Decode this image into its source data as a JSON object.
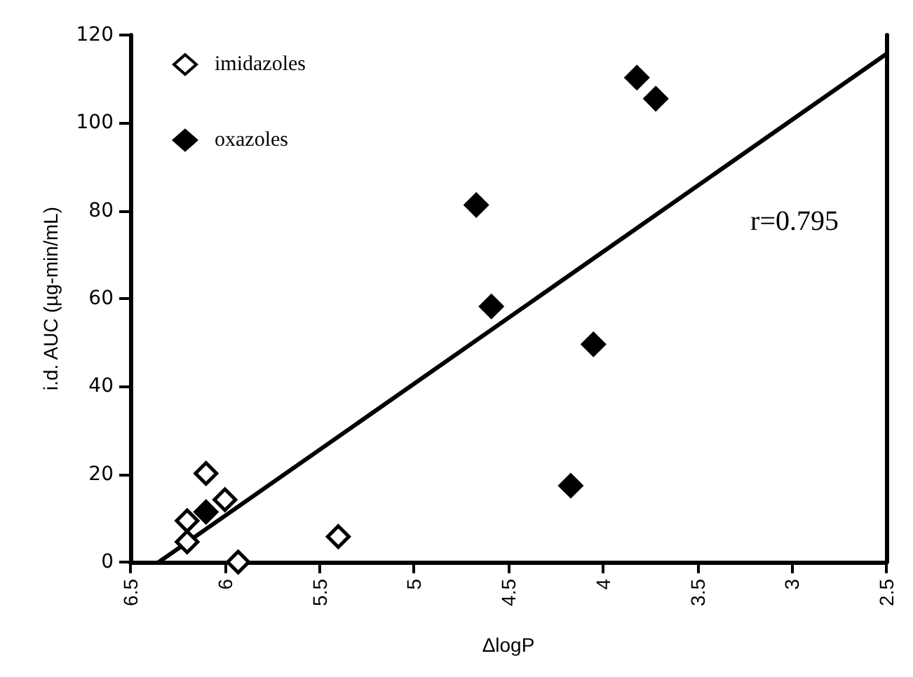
{
  "chart_data": {
    "type": "scatter",
    "xlabel": "ΔlogP",
    "ylabel": "i.d. AUC (µg-min/mL)",
    "xlim": [
      6.5,
      2.5
    ],
    "xticks": [
      6.5,
      6,
      5.5,
      5,
      4.5,
      4,
      3.5,
      3,
      2.5
    ],
    "ylim": [
      0,
      120
    ],
    "yticks": [
      0,
      20,
      40,
      60,
      80,
      100,
      120
    ],
    "grid": false,
    "legend": "top left",
    "marker": "diamond",
    "annotations": [
      "r=0.795"
    ],
    "series": [
      {
        "name": "imidazoles",
        "color": "#ffffff",
        "x": [
          6.1,
          6.0,
          6.2,
          6.2,
          5.93,
          5.4
        ],
        "values": [
          20.2,
          14.2,
          9.4,
          4.6,
          0,
          5.8
        ]
      },
      {
        "name": "oxazoles",
        "color": "#000000",
        "x": [
          6.1,
          3.82,
          3.72,
          4.67,
          4.59,
          4.05,
          4.17
        ],
        "values": [
          11.4,
          110.3,
          105.5,
          81.3,
          58.2,
          49.6,
          17.4
        ]
      },
      {
        "type": "line",
        "color": "#000000",
        "x": [
          6.35,
          2.5
        ],
        "values": [
          0,
          115.7
        ],
        "line_style": "solid",
        "marker": "none"
      }
    ]
  }
}
